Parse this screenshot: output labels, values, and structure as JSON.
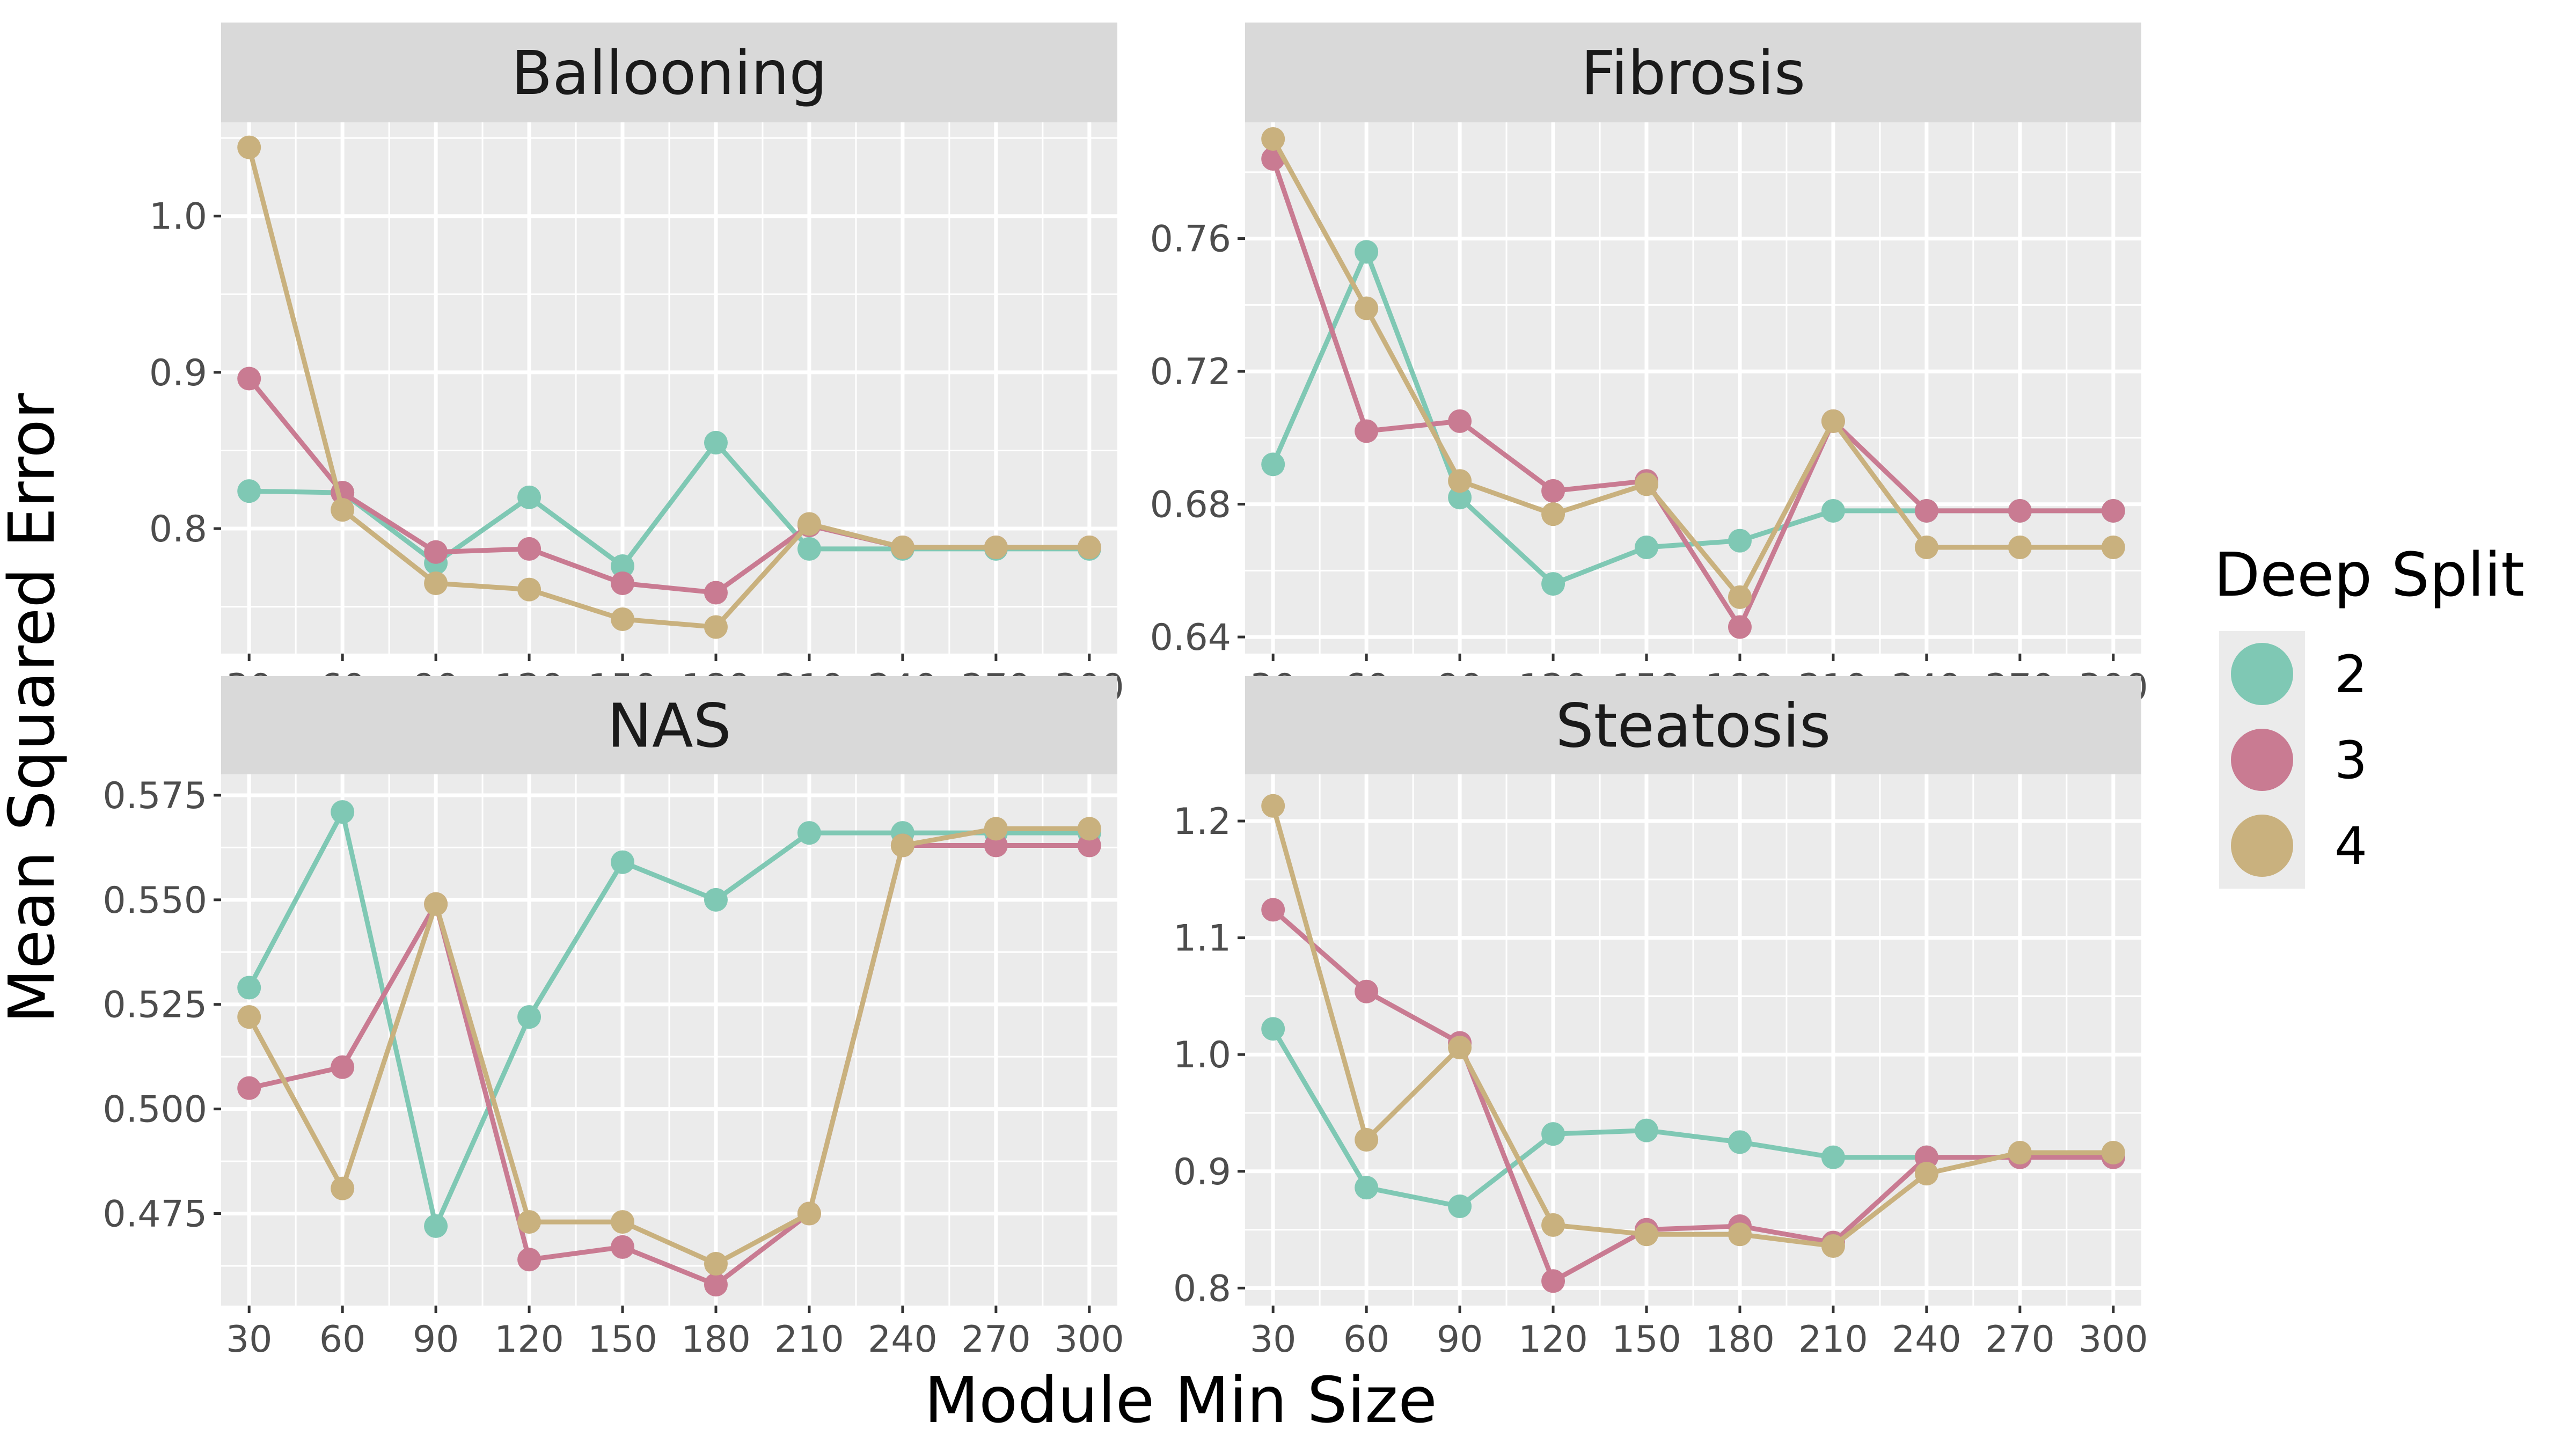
{
  "chart_data": {
    "type": "line",
    "xlabel": "Module Min Size",
    "ylabel": "Mean Squared Error",
    "x": [
      30,
      60,
      90,
      120,
      150,
      180,
      210,
      240,
      270,
      300
    ],
    "x_ticks": [
      "30",
      "60",
      "90",
      "120",
      "150",
      "180",
      "210",
      "240",
      "270",
      "300"
    ],
    "grid": true,
    "legend": {
      "title": "Deep Split",
      "position": "right",
      "entries": [
        {
          "label": "2",
          "color": "#7fc8b4"
        },
        {
          "label": "3",
          "color": "#c97b92"
        },
        {
          "label": "4",
          "color": "#c9b17e"
        }
      ]
    },
    "panels": [
      {
        "title": "Ballooning",
        "ylim": [
          0.72,
          1.06
        ],
        "y_ticks": [
          0.8,
          0.9,
          1.0
        ],
        "y_tick_labels": [
          "0.8",
          "0.9",
          "1.0"
        ],
        "series": [
          {
            "name": "2",
            "values": [
              0.824,
              0.823,
              0.778,
              0.82,
              0.776,
              0.855,
              0.787,
              0.787,
              0.787,
              0.787
            ]
          },
          {
            "name": "3",
            "values": [
              0.896,
              0.823,
              0.785,
              0.787,
              0.765,
              0.759,
              0.802,
              0.788,
              0.788,
              0.788
            ]
          },
          {
            "name": "4",
            "values": [
              1.044,
              0.812,
              0.765,
              0.761,
              0.742,
              0.737,
              0.803,
              0.788,
              0.788,
              0.788
            ]
          }
        ]
      },
      {
        "title": "Fibrosis",
        "ylim": [
          0.635,
          0.795
        ],
        "y_ticks": [
          0.64,
          0.68,
          0.72,
          0.76
        ],
        "y_tick_labels": [
          "0.64",
          "0.68",
          "0.72",
          "0.76"
        ],
        "series": [
          {
            "name": "2",
            "values": [
              0.692,
              0.756,
              0.682,
              0.656,
              0.667,
              0.669,
              0.678,
              0.678,
              0.678,
              0.678
            ]
          },
          {
            "name": "3",
            "values": [
              0.784,
              0.702,
              0.705,
              0.684,
              0.687,
              0.643,
              0.705,
              0.678,
              0.678,
              0.678
            ]
          },
          {
            "name": "4",
            "values": [
              0.79,
              0.739,
              0.687,
              0.677,
              0.686,
              0.652,
              0.705,
              0.667,
              0.667,
              0.667
            ]
          }
        ]
      },
      {
        "title": "NAS",
        "ylim": [
          0.453,
          0.58
        ],
        "y_ticks": [
          0.475,
          0.5,
          0.525,
          0.55,
          0.575
        ],
        "y_tick_labels": [
          "0.475",
          "0.500",
          "0.525",
          "0.550",
          "0.575"
        ],
        "series": [
          {
            "name": "2",
            "values": [
              0.529,
              0.571,
              0.472,
              0.522,
              0.559,
              0.55,
              0.566,
              0.566,
              0.566,
              0.566
            ]
          },
          {
            "name": "3",
            "values": [
              0.505,
              0.51,
              0.549,
              0.464,
              0.467,
              0.458,
              0.475,
              0.563,
              0.563,
              0.563
            ]
          },
          {
            "name": "4",
            "values": [
              0.522,
              0.481,
              0.549,
              0.473,
              0.473,
              0.463,
              0.475,
              0.563,
              0.567,
              0.567
            ]
          }
        ]
      },
      {
        "title": "Steatosis",
        "ylim": [
          0.785,
          1.24
        ],
        "y_ticks": [
          0.8,
          0.9,
          1.0,
          1.1,
          1.2
        ],
        "y_tick_labels": [
          "0.8",
          "0.9",
          "1.0",
          "1.1",
          "1.2"
        ],
        "series": [
          {
            "name": "2",
            "values": [
              1.022,
              0.886,
              0.87,
              0.932,
              0.935,
              0.925,
              0.912,
              0.912,
              0.912,
              0.912
            ]
          },
          {
            "name": "3",
            "values": [
              1.124,
              1.054,
              1.01,
              0.806,
              0.85,
              0.853,
              0.839,
              0.912,
              0.912,
              0.912
            ]
          },
          {
            "name": "4",
            "values": [
              1.213,
              0.927,
              1.006,
              0.854,
              0.846,
              0.846,
              0.836,
              0.898,
              0.916,
              0.916
            ]
          }
        ]
      }
    ]
  }
}
